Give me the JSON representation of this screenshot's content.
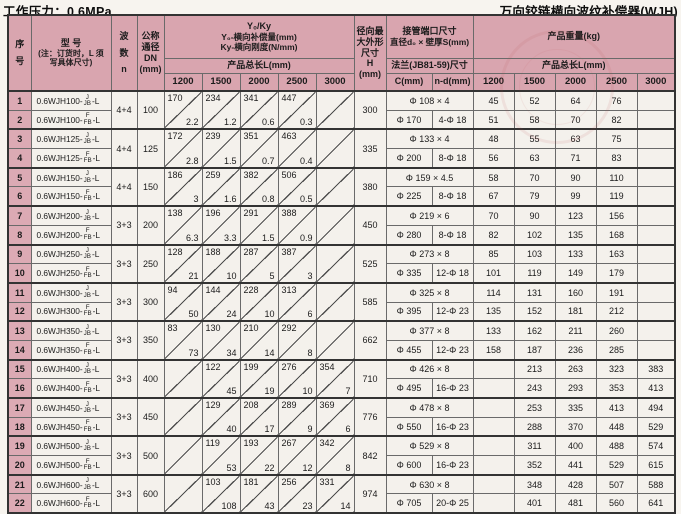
{
  "titles": {
    "left": "工作压力：0.6MPa",
    "right": "万向铰链横向波纹补偿器(WJH)"
  },
  "header": {
    "seq_lines": [
      "序",
      "号"
    ],
    "model_lines": [
      "型  号",
      "(注：订货时，L 须",
      "写具体尺寸)"
    ],
    "wave_lines": [
      "波",
      "数",
      "n"
    ],
    "dn_lines": [
      "公称",
      "通径",
      "DN",
      "(mm)"
    ],
    "yk_lines": [
      "Y₀/Ky",
      "Y₀-横向补偿量(mm)",
      "Ky-横向刚度(N/mm)"
    ],
    "product_length": "产品总长L(mm)",
    "length_cols": [
      "1200",
      "1500",
      "2000",
      "2500",
      "3000"
    ],
    "h_lines": [
      "径向最",
      "大外形",
      "尺寸",
      "H",
      "(mm)"
    ],
    "pipe_lines": [
      "接管端口尺寸",
      "直径d₀ × 壁厚S(mm)"
    ],
    "flange_title": "法兰(JB81-59)尺寸",
    "c_col": "C(mm)",
    "nd_col": "n-d(mm)",
    "weight_title": "产品重量(kg)",
    "weight_length": "产品总长L(mm)",
    "weight_cols": [
      "1200",
      "1500",
      "2000",
      "2500",
      "3000"
    ]
  },
  "colors": {
    "header_pink": "#d9a5af",
    "index_pink": "#dcaab4",
    "cell_bg": "#f4f1ec"
  },
  "pairs": [
    {
      "n": "4+4",
      "dn": "100",
      "h": "300",
      "pipe": "Φ 108 × 4",
      "flange_c": "Φ 170",
      "flange_nd": "4-Φ 18",
      "yk": [
        [
          "170",
          "2.2"
        ],
        [
          "234",
          "1.2"
        ],
        [
          "341",
          "0.6"
        ],
        [
          "447",
          "0.3"
        ],
        null
      ],
      "rows": [
        {
          "seq": "1",
          "model_prefix": "0.6WJH100-",
          "model_top": "J",
          "model_bottom": "JB",
          "model_suffix": "-L",
          "weights": [
            "45",
            "52",
            "64",
            "76",
            ""
          ]
        },
        {
          "seq": "2",
          "model_prefix": "0.6WJH100-",
          "model_top": "F",
          "model_bottom": "FB",
          "model_suffix": "-L",
          "weights": [
            "51",
            "58",
            "70",
            "82",
            ""
          ]
        }
      ]
    },
    {
      "n": "4+4",
      "dn": "125",
      "h": "335",
      "pipe": "Φ 133 × 4",
      "flange_c": "Φ 200",
      "flange_nd": "8-Φ 18",
      "yk": [
        [
          "172",
          "2.8"
        ],
        [
          "239",
          "1.5"
        ],
        [
          "351",
          "0.7"
        ],
        [
          "463",
          "0.4"
        ],
        null
      ],
      "rows": [
        {
          "seq": "3",
          "model_prefix": "0.6WJH125-",
          "model_top": "J",
          "model_bottom": "JB",
          "model_suffix": "-L",
          "weights": [
            "48",
            "55",
            "63",
            "75",
            ""
          ]
        },
        {
          "seq": "4",
          "model_prefix": "0.6WJH125-",
          "model_top": "F",
          "model_bottom": "FB",
          "model_suffix": "-L",
          "weights": [
            "56",
            "63",
            "71",
            "83",
            ""
          ]
        }
      ]
    },
    {
      "n": "4+4",
      "dn": "150",
      "h": "380",
      "pipe": "Φ 159 × 4.5",
      "flange_c": "Φ 225",
      "flange_nd": "8-Φ 18",
      "yk": [
        [
          "186",
          "3"
        ],
        [
          "259",
          "1.6"
        ],
        [
          "382",
          "0.8"
        ],
        [
          "506",
          "0.5"
        ],
        null
      ],
      "rows": [
        {
          "seq": "5",
          "model_prefix": "0.6WJH150-",
          "model_top": "J",
          "model_bottom": "JB",
          "model_suffix": "-L",
          "weights": [
            "58",
            "70",
            "90",
            "110",
            ""
          ]
        },
        {
          "seq": "6",
          "model_prefix": "0.6WJH150-",
          "model_top": "F",
          "model_bottom": "FB",
          "model_suffix": "-L",
          "weights": [
            "67",
            "79",
            "99",
            "119",
            ""
          ]
        }
      ]
    },
    {
      "n": "3+3",
      "dn": "200",
      "h": "450",
      "pipe": "Φ 219 × 6",
      "flange_c": "Φ 280",
      "flange_nd": "8-Φ 18",
      "yk": [
        [
          "138",
          "6.3"
        ],
        [
          "196",
          "3.3"
        ],
        [
          "291",
          "1.5"
        ],
        [
          "388",
          "0.9"
        ],
        null
      ],
      "rows": [
        {
          "seq": "7",
          "model_prefix": "0.6WJH200-",
          "model_top": "J",
          "model_bottom": "JB",
          "model_suffix": "-L",
          "weights": [
            "70",
            "90",
            "123",
            "156",
            ""
          ]
        },
        {
          "seq": "8",
          "model_prefix": "0.6WJH200-",
          "model_top": "F",
          "model_bottom": "FB",
          "model_suffix": "-L",
          "weights": [
            "82",
            "102",
            "135",
            "168",
            ""
          ]
        }
      ]
    },
    {
      "n": "3+3",
      "dn": "250",
      "h": "525",
      "pipe": "Φ 273 × 8",
      "flange_c": "Φ 335",
      "flange_nd": "12-Φ 18",
      "yk": [
        [
          "128",
          "21"
        ],
        [
          "188",
          "10"
        ],
        [
          "287",
          "5"
        ],
        [
          "387",
          "3"
        ],
        null
      ],
      "rows": [
        {
          "seq": "9",
          "model_prefix": "0.6WJH250-",
          "model_top": "J",
          "model_bottom": "JB",
          "model_suffix": "-L",
          "weights": [
            "85",
            "103",
            "133",
            "163",
            ""
          ]
        },
        {
          "seq": "10",
          "model_prefix": "0.6WJH250-",
          "model_top": "F",
          "model_bottom": "FB",
          "model_suffix": "-L",
          "weights": [
            "101",
            "119",
            "149",
            "179",
            ""
          ]
        }
      ]
    },
    {
      "n": "3+3",
      "dn": "300",
      "h": "585",
      "pipe": "Φ 325 × 8",
      "flange_c": "Φ 395",
      "flange_nd": "12-Φ 23",
      "yk": [
        [
          "94",
          "50"
        ],
        [
          "144",
          "24"
        ],
        [
          "228",
          "10"
        ],
        [
          "313",
          "6"
        ],
        null
      ],
      "rows": [
        {
          "seq": "11",
          "model_prefix": "0.6WJH300-",
          "model_top": "J",
          "model_bottom": "JB",
          "model_suffix": "-L",
          "weights": [
            "114",
            "131",
            "160",
            "191",
            ""
          ]
        },
        {
          "seq": "12",
          "model_prefix": "0.6WJH300-",
          "model_top": "F",
          "model_bottom": "FB",
          "model_suffix": "-L",
          "weights": [
            "135",
            "152",
            "181",
            "212",
            ""
          ]
        }
      ]
    },
    {
      "n": "3+3",
      "dn": "350",
      "h": "662",
      "pipe": "Φ 377 × 8",
      "flange_c": "Φ 455",
      "flange_nd": "12-Φ 23",
      "yk": [
        [
          "83",
          "73"
        ],
        [
          "130",
          "34"
        ],
        [
          "210",
          "14"
        ],
        [
          "292",
          "8"
        ],
        null
      ],
      "rows": [
        {
          "seq": "13",
          "model_prefix": "0.6WJH350-",
          "model_top": "J",
          "model_bottom": "JB",
          "model_suffix": "-L",
          "weights": [
            "133",
            "162",
            "211",
            "260",
            ""
          ]
        },
        {
          "seq": "14",
          "model_prefix": "0.6WJH350-",
          "model_top": "F",
          "model_bottom": "FB",
          "model_suffix": "-L",
          "weights": [
            "158",
            "187",
            "236",
            "285",
            ""
          ]
        }
      ]
    },
    {
      "n": "3+3",
      "dn": "400",
      "h": "710",
      "pipe": "Φ 426 × 8",
      "flange_c": "Φ 495",
      "flange_nd": "16-Φ 23",
      "yk": [
        null,
        [
          "122",
          "45"
        ],
        [
          "199",
          "19"
        ],
        [
          "276",
          "10"
        ],
        [
          "354",
          "7"
        ]
      ],
      "rows": [
        {
          "seq": "15",
          "model_prefix": "0.6WJH400-",
          "model_top": "J",
          "model_bottom": "JB",
          "model_suffix": "-L",
          "weights": [
            "",
            "213",
            "263",
            "323",
            "383"
          ]
        },
        {
          "seq": "16",
          "model_prefix": "0.6WJH400-",
          "model_top": "F",
          "model_bottom": "FB",
          "model_suffix": "-L",
          "weights": [
            "",
            "243",
            "293",
            "353",
            "413"
          ]
        }
      ]
    },
    {
      "n": "3+3",
      "dn": "450",
      "h": "776",
      "pipe": "Φ 478 × 8",
      "flange_c": "Φ 550",
      "flange_nd": "16-Φ 23",
      "yk": [
        null,
        [
          "129",
          "40"
        ],
        [
          "208",
          "17"
        ],
        [
          "289",
          "9"
        ],
        [
          "369",
          "6"
        ]
      ],
      "rows": [
        {
          "seq": "17",
          "model_prefix": "0.6WJH450-",
          "model_top": "J",
          "model_bottom": "JB",
          "model_suffix": "-L",
          "weights": [
            "",
            "253",
            "335",
            "413",
            "494"
          ]
        },
        {
          "seq": "18",
          "model_prefix": "0.6WJH450-",
          "model_top": "F",
          "model_bottom": "FB",
          "model_suffix": "-L",
          "weights": [
            "",
            "288",
            "370",
            "448",
            "529"
          ]
        }
      ]
    },
    {
      "n": "3+3",
      "dn": "500",
      "h": "842",
      "pipe": "Φ 529 × 8",
      "flange_c": "Φ 600",
      "flange_nd": "16-Φ 23",
      "yk": [
        null,
        [
          "119",
          "53"
        ],
        [
          "193",
          "22"
        ],
        [
          "267",
          "12"
        ],
        [
          "342",
          "8"
        ]
      ],
      "rows": [
        {
          "seq": "19",
          "model_prefix": "0.6WJH500-",
          "model_top": "J",
          "model_bottom": "JB",
          "model_suffix": "-L",
          "weights": [
            "",
            "311",
            "400",
            "488",
            "574"
          ]
        },
        {
          "seq": "20",
          "model_prefix": "0.6WJH500-",
          "model_top": "F",
          "model_bottom": "FB",
          "model_suffix": "-L",
          "weights": [
            "",
            "352",
            "441",
            "529",
            "615"
          ]
        }
      ]
    },
    {
      "n": "3+3",
      "dn": "600",
      "h": "974",
      "pipe": "Φ 630 × 8",
      "flange_c": "Φ 705",
      "flange_nd": "20-Φ 25",
      "yk": [
        null,
        [
          "103",
          "108"
        ],
        [
          "181",
          "43"
        ],
        [
          "256",
          "23"
        ],
        [
          "331",
          "14"
        ]
      ],
      "rows": [
        {
          "seq": "21",
          "model_prefix": "0.6WJH600-",
          "model_top": "J",
          "model_bottom": "JB",
          "model_suffix": "-L",
          "weights": [
            "",
            "348",
            "428",
            "507",
            "588"
          ]
        },
        {
          "seq": "22",
          "model_prefix": "0.6WJH600-",
          "model_top": "F",
          "model_bottom": "FB",
          "model_suffix": "-L",
          "weights": [
            "",
            "401",
            "481",
            "560",
            "641"
          ]
        }
      ]
    }
  ]
}
